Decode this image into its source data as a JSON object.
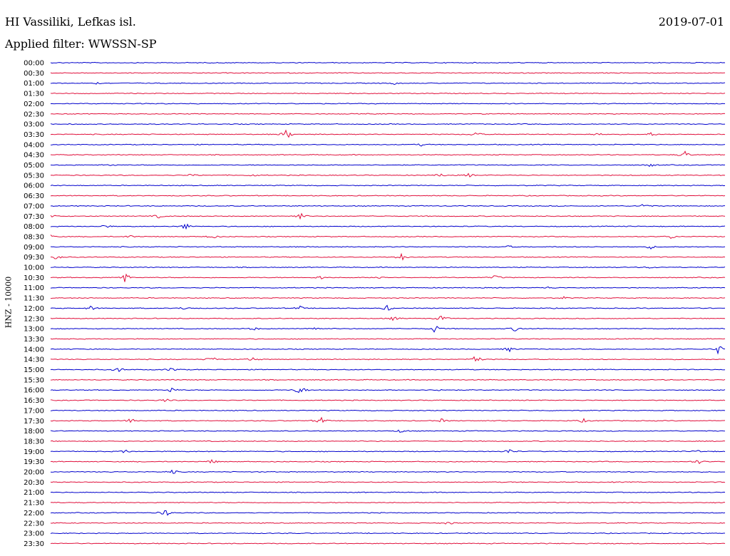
{
  "header": {
    "station": "HI Vassiliki, Lefkas isl.",
    "date": "2019-07-01",
    "filter": "Applied filter: WWSSN-SP"
  },
  "chart_data": {
    "type": "line",
    "title": "HI Vassiliki, Lefkas isl.",
    "ylabel": "HNZ - 10000",
    "xlabel": "",
    "grid": false,
    "colors": {
      "even_rows": "#0000cc",
      "odd_rows": "#e0103c"
    },
    "rows": [
      {
        "time": "00:00",
        "events": []
      },
      {
        "time": "00:30",
        "events": []
      },
      {
        "time": "01:00",
        "events": [
          {
            "t": 0.07,
            "a": 0.15
          },
          {
            "t": 0.51,
            "a": 0.2
          }
        ]
      },
      {
        "time": "01:30",
        "events": []
      },
      {
        "time": "02:00",
        "events": []
      },
      {
        "time": "02:30",
        "events": []
      },
      {
        "time": "03:00",
        "events": []
      },
      {
        "time": "03:30",
        "events": [
          {
            "t": 0.35,
            "a": 0.9
          },
          {
            "t": 0.63,
            "a": 0.5
          },
          {
            "t": 0.81,
            "a": 0.3
          },
          {
            "t": 0.89,
            "a": 0.3
          }
        ]
      },
      {
        "time": "04:00",
        "events": [
          {
            "t": 0.55,
            "a": 0.2
          }
        ]
      },
      {
        "time": "04:30",
        "events": [
          {
            "t": 0.94,
            "a": 0.7
          }
        ]
      },
      {
        "time": "05:00",
        "events": [
          {
            "t": 0.09,
            "a": 0.2
          },
          {
            "t": 0.89,
            "a": 0.3
          }
        ]
      },
      {
        "time": "05:30",
        "events": [
          {
            "t": 0.21,
            "a": 0.2
          },
          {
            "t": 0.3,
            "a": 0.2
          },
          {
            "t": 0.58,
            "a": 0.3
          },
          {
            "t": 0.62,
            "a": 0.3
          }
        ]
      },
      {
        "time": "06:00",
        "events": []
      },
      {
        "time": "06:30",
        "events": []
      },
      {
        "time": "07:00",
        "events": [
          {
            "t": 0.88,
            "a": 0.5
          }
        ]
      },
      {
        "time": "07:30",
        "events": [
          {
            "t": 0.0,
            "a": 0.4
          },
          {
            "t": 0.16,
            "a": 0.3
          },
          {
            "t": 0.37,
            "a": 0.6
          }
        ]
      },
      {
        "time": "08:00",
        "events": [
          {
            "t": 0.08,
            "a": 0.3
          },
          {
            "t": 0.2,
            "a": 0.6
          }
        ]
      },
      {
        "time": "08:30",
        "events": [
          {
            "t": 0.0,
            "a": 0.3
          },
          {
            "t": 0.12,
            "a": 0.3
          },
          {
            "t": 0.24,
            "a": 0.4
          },
          {
            "t": 0.92,
            "a": 0.4
          }
        ]
      },
      {
        "time": "09:00",
        "events": [
          {
            "t": 0.68,
            "a": 0.2
          },
          {
            "t": 0.89,
            "a": 0.3
          }
        ]
      },
      {
        "time": "09:30",
        "events": [
          {
            "t": 0.01,
            "a": 0.5
          },
          {
            "t": 0.52,
            "a": 0.7
          }
        ]
      },
      {
        "time": "10:00",
        "events": [
          {
            "t": 0.89,
            "a": 0.2
          }
        ]
      },
      {
        "time": "10:30",
        "events": [
          {
            "t": 0.11,
            "a": 0.9
          },
          {
            "t": 0.4,
            "a": 0.3
          },
          {
            "t": 0.49,
            "a": 0.4
          },
          {
            "t": 0.66,
            "a": 0.4
          }
        ]
      },
      {
        "time": "11:00",
        "events": [
          {
            "t": 0.74,
            "a": 0.2
          }
        ]
      },
      {
        "time": "11:30",
        "events": [
          {
            "t": 0.76,
            "a": 0.2
          }
        ]
      },
      {
        "time": "12:00",
        "events": [
          {
            "t": 0.06,
            "a": 0.4
          },
          {
            "t": 0.2,
            "a": 0.4
          },
          {
            "t": 0.37,
            "a": 0.3
          },
          {
            "t": 0.5,
            "a": 0.5
          }
        ]
      },
      {
        "time": "12:30",
        "events": [
          {
            "t": 0.51,
            "a": 0.4
          },
          {
            "t": 0.58,
            "a": 0.5
          }
        ]
      },
      {
        "time": "13:00",
        "events": [
          {
            "t": 0.3,
            "a": 0.3
          },
          {
            "t": 0.39,
            "a": 0.4
          },
          {
            "t": 0.57,
            "a": 0.7
          },
          {
            "t": 0.69,
            "a": 0.5
          }
        ]
      },
      {
        "time": "13:30",
        "events": []
      },
      {
        "time": "14:00",
        "events": [
          {
            "t": 0.68,
            "a": 0.4
          },
          {
            "t": 0.99,
            "a": 0.8
          }
        ]
      },
      {
        "time": "14:30",
        "events": [
          {
            "t": 0.24,
            "a": 0.6
          },
          {
            "t": 0.3,
            "a": 0.4
          },
          {
            "t": 0.63,
            "a": 0.9
          }
        ]
      },
      {
        "time": "15:00",
        "events": [
          {
            "t": 0.1,
            "a": 0.5
          },
          {
            "t": 0.18,
            "a": 0.4
          }
        ]
      },
      {
        "time": "15:30",
        "events": []
      },
      {
        "time": "16:00",
        "events": [
          {
            "t": 0.18,
            "a": 0.5
          },
          {
            "t": 0.37,
            "a": 0.9
          },
          {
            "t": 0.58,
            "a": 0.3
          }
        ]
      },
      {
        "time": "16:30",
        "events": [
          {
            "t": 0.17,
            "a": 0.3
          }
        ]
      },
      {
        "time": "17:00",
        "events": []
      },
      {
        "time": "17:30",
        "events": [
          {
            "t": 0.12,
            "a": 0.5
          },
          {
            "t": 0.4,
            "a": 0.7
          },
          {
            "t": 0.58,
            "a": 0.3
          },
          {
            "t": 0.79,
            "a": 0.3
          }
        ]
      },
      {
        "time": "18:00",
        "events": [
          {
            "t": 0.52,
            "a": 0.3
          }
        ]
      },
      {
        "time": "18:30",
        "events": []
      },
      {
        "time": "19:00",
        "events": [
          {
            "t": 0.11,
            "a": 0.3
          },
          {
            "t": 0.68,
            "a": 0.5
          },
          {
            "t": 0.96,
            "a": 0.2
          }
        ]
      },
      {
        "time": "19:30",
        "events": [
          {
            "t": 0.24,
            "a": 0.4
          },
          {
            "t": 0.96,
            "a": 0.4
          }
        ]
      },
      {
        "time": "20:00",
        "events": [
          {
            "t": 0.18,
            "a": 0.4
          }
        ]
      },
      {
        "time": "20:30",
        "events": []
      },
      {
        "time": "21:00",
        "events": []
      },
      {
        "time": "21:30",
        "events": []
      },
      {
        "time": "22:00",
        "events": [
          {
            "t": 0.17,
            "a": 0.7
          }
        ]
      },
      {
        "time": "22:30",
        "events": [
          {
            "t": 0.59,
            "a": 0.3
          }
        ]
      },
      {
        "time": "23:00",
        "events": []
      },
      {
        "time": "23:30",
        "events": []
      }
    ]
  }
}
